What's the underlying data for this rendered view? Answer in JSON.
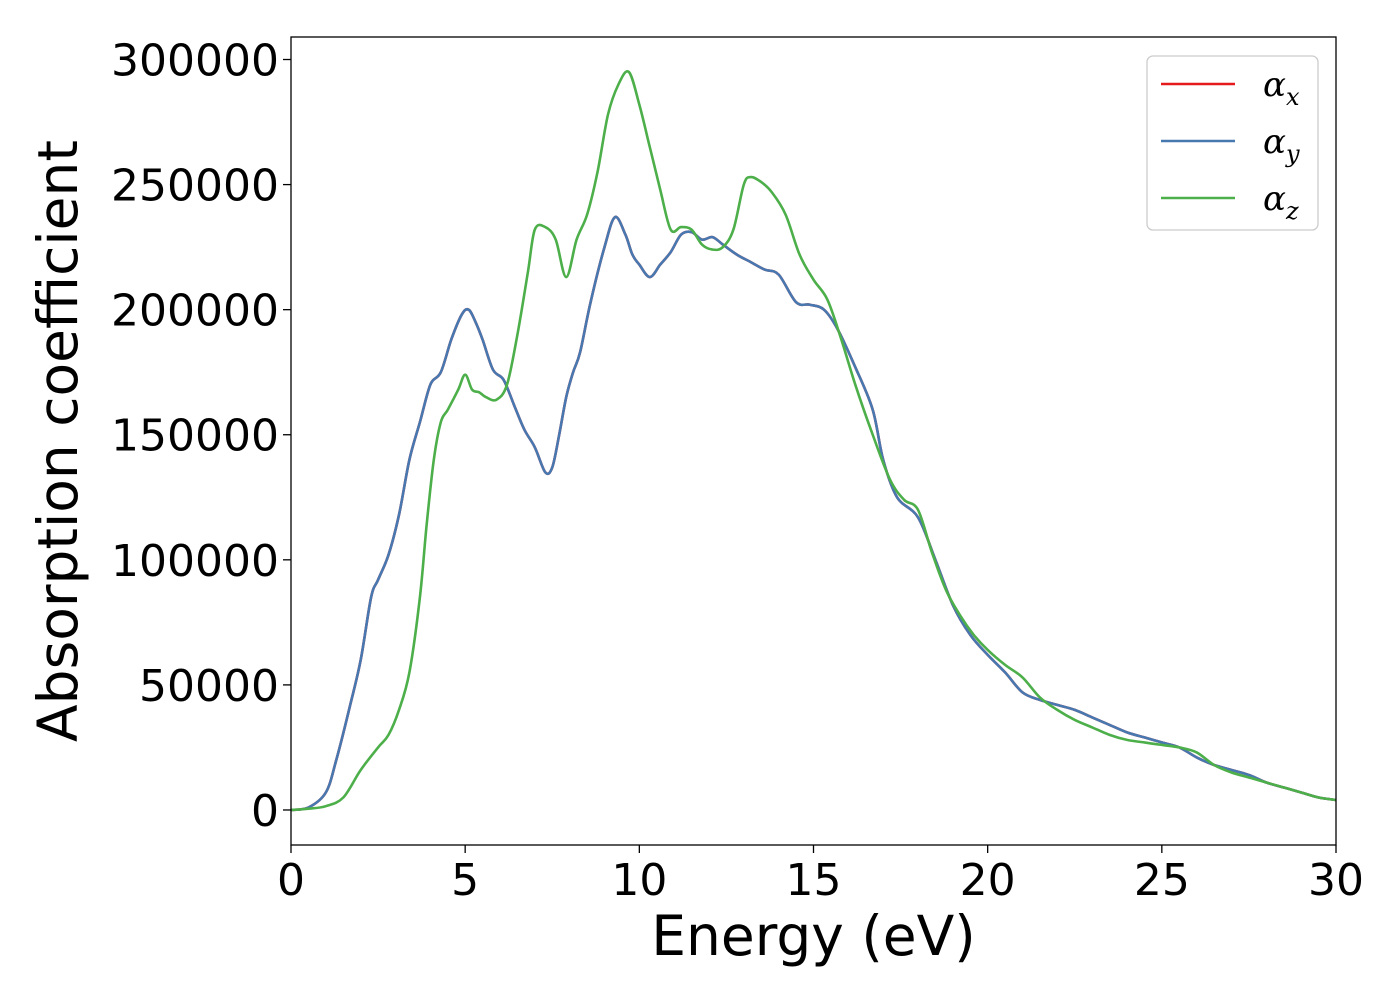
{
  "chart_data": {
    "type": "line",
    "xlabel": "Energy (eV)",
    "ylabel": "Absorption coefficient",
    "xlim": [
      0,
      30
    ],
    "ylim": [
      -14000,
      309000
    ],
    "xticks": [
      "0",
      "5",
      "10",
      "15",
      "20",
      "25",
      "30"
    ],
    "yticks": [
      "0",
      "50000",
      "100000",
      "150000",
      "200000",
      "250000",
      "300000"
    ],
    "grid": false,
    "legend_position": "top-right",
    "series": [
      {
        "name": "α",
        "subscript": "x",
        "color": "#e41a1c",
        "x": [
          0,
          0.5,
          1.0,
          1.3,
          1.7,
          2.0,
          2.3,
          2.5,
          2.8,
          3.1,
          3.4,
          3.7,
          4.0,
          4.3,
          4.6,
          4.9,
          5.1,
          5.3,
          5.5,
          5.8,
          6.1,
          6.4,
          6.7,
          7.0,
          7.3,
          7.5,
          7.7,
          7.9,
          8.1,
          8.3,
          8.6,
          9.0,
          9.3,
          9.6,
          9.8,
          10.0,
          10.3,
          10.6,
          10.9,
          11.2,
          11.5,
          11.8,
          12.1,
          12.4,
          12.8,
          13.2,
          13.6,
          14.0,
          14.5,
          14.9,
          15.3,
          15.7,
          16.2,
          16.7,
          17.0,
          17.4,
          18.0,
          18.5,
          19.0,
          19.5,
          20.0,
          20.5,
          21.0,
          21.5,
          22.0,
          22.5,
          23.0,
          23.5,
          24.0,
          24.5,
          25.0,
          25.5,
          26.0,
          26.5,
          27.0,
          27.5,
          28.0,
          28.5,
          29.0,
          29.5,
          30.0
        ],
        "y": [
          0,
          1000,
          7000,
          20000,
          42000,
          60000,
          85000,
          92000,
          102000,
          118000,
          140000,
          155000,
          170000,
          175000,
          188000,
          198000,
          200000,
          195000,
          188000,
          176000,
          172000,
          162000,
          152000,
          145000,
          135000,
          137000,
          150000,
          165000,
          175000,
          183000,
          203000,
          225000,
          237000,
          230000,
          222000,
          218000,
          213000,
          218000,
          223000,
          230000,
          231000,
          228000,
          229000,
          226000,
          222000,
          219000,
          216000,
          214000,
          203000,
          202000,
          200000,
          192000,
          177000,
          160000,
          140000,
          125000,
          117000,
          100000,
          82000,
          70000,
          62000,
          55000,
          47000,
          44000,
          42000,
          40000,
          37000,
          34000,
          31000,
          29000,
          27000,
          25000,
          21000,
          18000,
          16000,
          14000,
          11000,
          9000,
          7000,
          5000,
          4000
        ]
      },
      {
        "name": "α",
        "subscript": "y",
        "color": "#4878b0",
        "x": [
          0,
          0.5,
          1.0,
          1.3,
          1.7,
          2.0,
          2.3,
          2.5,
          2.8,
          3.1,
          3.4,
          3.7,
          4.0,
          4.3,
          4.6,
          4.9,
          5.1,
          5.3,
          5.5,
          5.8,
          6.1,
          6.4,
          6.7,
          7.0,
          7.3,
          7.5,
          7.7,
          7.9,
          8.1,
          8.3,
          8.6,
          9.0,
          9.3,
          9.6,
          9.8,
          10.0,
          10.3,
          10.6,
          10.9,
          11.2,
          11.5,
          11.8,
          12.1,
          12.4,
          12.8,
          13.2,
          13.6,
          14.0,
          14.5,
          14.9,
          15.3,
          15.7,
          16.2,
          16.7,
          17.0,
          17.4,
          18.0,
          18.5,
          19.0,
          19.5,
          20.0,
          20.5,
          21.0,
          21.5,
          22.0,
          22.5,
          23.0,
          23.5,
          24.0,
          24.5,
          25.0,
          25.5,
          26.0,
          26.5,
          27.0,
          27.5,
          28.0,
          28.5,
          29.0,
          29.5,
          30.0
        ],
        "y": [
          0,
          1000,
          7000,
          20000,
          42000,
          60000,
          85000,
          92000,
          102000,
          118000,
          140000,
          155000,
          170000,
          175000,
          188000,
          198000,
          200000,
          195000,
          188000,
          176000,
          172000,
          162000,
          152000,
          145000,
          135000,
          137000,
          150000,
          165000,
          175000,
          183000,
          203000,
          225000,
          237000,
          230000,
          222000,
          218000,
          213000,
          218000,
          223000,
          230000,
          231000,
          228000,
          229000,
          226000,
          222000,
          219000,
          216000,
          214000,
          203000,
          202000,
          200000,
          192000,
          177000,
          160000,
          140000,
          125000,
          117000,
          100000,
          82000,
          70000,
          62000,
          55000,
          47000,
          44000,
          42000,
          40000,
          37000,
          34000,
          31000,
          29000,
          27000,
          25000,
          21000,
          18000,
          16000,
          14000,
          11000,
          9000,
          7000,
          5000,
          4000
        ]
      },
      {
        "name": "α",
        "subscript": "z",
        "color": "#4daf4a",
        "x": [
          0,
          0.5,
          1.0,
          1.5,
          2.0,
          2.5,
          2.8,
          3.1,
          3.4,
          3.7,
          3.9,
          4.1,
          4.3,
          4.5,
          4.8,
          5.0,
          5.2,
          5.4,
          5.6,
          5.9,
          6.2,
          6.5,
          6.8,
          7.0,
          7.3,
          7.6,
          7.9,
          8.2,
          8.5,
          8.8,
          9.1,
          9.4,
          9.7,
          10.0,
          10.3,
          10.6,
          10.9,
          11.2,
          11.5,
          11.8,
          12.1,
          12.4,
          12.7,
          13.0,
          13.2,
          13.5,
          13.8,
          14.2,
          14.6,
          15.0,
          15.4,
          15.8,
          16.2,
          16.7,
          17.2,
          17.6,
          18.0,
          18.4,
          18.8,
          19.2,
          19.6,
          20.0,
          20.5,
          21.0,
          21.5,
          22.0,
          22.5,
          23.0,
          23.5,
          24.0,
          24.5,
          25.0,
          25.5,
          26.0,
          26.5,
          27.0,
          27.5,
          28.0,
          28.5,
          29.0,
          29.5,
          30.0
        ],
        "y": [
          0,
          500,
          1500,
          5000,
          16000,
          25000,
          30000,
          40000,
          55000,
          85000,
          115000,
          140000,
          155000,
          160000,
          168000,
          174000,
          168000,
          167000,
          165000,
          164000,
          170000,
          190000,
          215000,
          232000,
          233000,
          228000,
          213000,
          228000,
          238000,
          255000,
          278000,
          290000,
          295000,
          282000,
          265000,
          248000,
          232000,
          233000,
          232000,
          226000,
          224000,
          225000,
          232000,
          250000,
          253000,
          251000,
          247000,
          238000,
          222000,
          212000,
          204000,
          188000,
          170000,
          150000,
          132000,
          124000,
          120000,
          103000,
          88000,
          78000,
          70000,
          64000,
          58000,
          53000,
          45000,
          40000,
          36000,
          33000,
          30000,
          28000,
          27000,
          26000,
          25000,
          23000,
          18000,
          15000,
          13000,
          11000,
          9000,
          7000,
          5000,
          4000
        ]
      }
    ]
  }
}
